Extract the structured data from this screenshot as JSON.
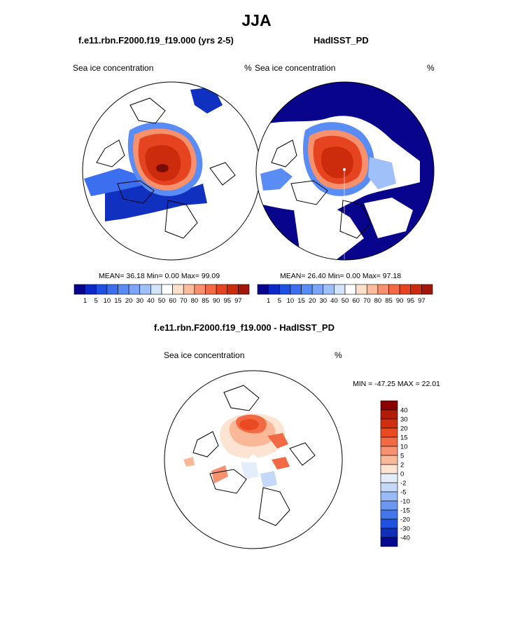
{
  "title": "JJA",
  "colors": {
    "ocean_ice_low": "#00008b",
    "land_outline": "#000000",
    "white": "#ffffff"
  },
  "panel_left": {
    "case": "f.e11.rbn.F2000.f19_f19.000 (yrs 2-5)",
    "variable": "Sea ice concentration",
    "units": "%",
    "stats": "MEAN=  36.18  Min=   0.00  Max=  99.09"
  },
  "panel_right": {
    "case": "HadISST_PD",
    "variable": "Sea ice concentration",
    "units": "%",
    "stats": "MEAN=  26.40  Min=   0.00  Max=  97.18"
  },
  "panel_diff": {
    "case": "f.e11.rbn.F2000.f19_f19.000 - HadISST_PD",
    "variable": "Sea ice concentration",
    "units": "%",
    "minmax": "MIN = -47.25 MAX =  22.01"
  },
  "chart_data": [
    {
      "type": "heatmap",
      "title": "f.e11.rbn.F2000.f19_f19.000 (yrs 2-5)",
      "projection": "north polar stereographic",
      "colorbar": {
        "orientation": "horizontal",
        "levels": [
          "1",
          "5",
          "10",
          "15",
          "20",
          "30",
          "40",
          "50",
          "60",
          "70",
          "80",
          "85",
          "90",
          "95",
          "97"
        ],
        "colors": [
          "#08048c",
          "#0c28c8",
          "#1e50e6",
          "#3c6ef0",
          "#5a8cf5",
          "#7aa5f8",
          "#a0c0fa",
          "#d2e4fa",
          "#ffffff",
          "#fde0cc",
          "#fbbc9c",
          "#f7906c",
          "#f26a44",
          "#e64420",
          "#cc2c0c",
          "#a4160a"
        ]
      },
      "mean": 36.18,
      "min": 0.0,
      "max": 99.09
    },
    {
      "type": "heatmap",
      "title": "HadISST_PD",
      "projection": "north polar stereographic",
      "colorbar": {
        "orientation": "horizontal",
        "levels": [
          "1",
          "5",
          "10",
          "15",
          "20",
          "30",
          "40",
          "50",
          "60",
          "70",
          "80",
          "85",
          "90",
          "95",
          "97"
        ],
        "colors": [
          "#08048c",
          "#0c28c8",
          "#1e50e6",
          "#3c6ef0",
          "#5a8cf5",
          "#7aa5f8",
          "#a0c0fa",
          "#d2e4fa",
          "#ffffff",
          "#fde0cc",
          "#fbbc9c",
          "#f7906c",
          "#f26a44",
          "#e64420",
          "#cc2c0c",
          "#a4160a"
        ]
      },
      "mean": 26.4,
      "min": 0.0,
      "max": 97.18
    },
    {
      "type": "heatmap",
      "title": "f.e11.rbn.F2000.f19_f19.000 - HadISST_PD",
      "projection": "north polar stereographic",
      "colorbar": {
        "orientation": "vertical",
        "levels": [
          "40",
          "30",
          "20",
          "15",
          "10",
          "5",
          "2",
          "0",
          "-2",
          "-5",
          "-10",
          "-15",
          "-20",
          "-30",
          "-40"
        ],
        "colors": [
          "#8b0000",
          "#b01c08",
          "#d03010",
          "#e84a22",
          "#f26a44",
          "#f79270",
          "#fbb898",
          "#fde4d2",
          "#e4eefa",
          "#c4d8f8",
          "#98baf5",
          "#6c98f0",
          "#4276ea",
          "#2052e0",
          "#1030b8",
          "#060a8c"
        ]
      },
      "min": -47.25,
      "max": 22.01
    }
  ]
}
